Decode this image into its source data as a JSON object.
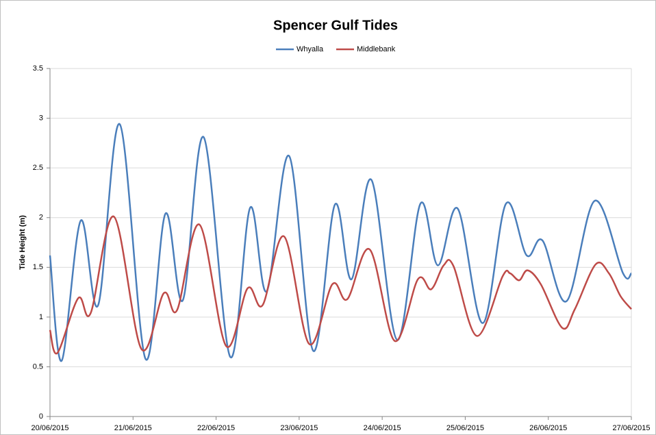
{
  "chart_data": {
    "type": "line",
    "title": "Spencer Gulf Tides",
    "y_label": "Tide Height (m)",
    "xlim": [
      0,
      7
    ],
    "xticks": [
      {
        "value": 0,
        "label": "20/06/2015"
      },
      {
        "value": 1,
        "label": "21/06/2015"
      },
      {
        "value": 2,
        "label": "22/06/2015"
      },
      {
        "value": 3,
        "label": "23/06/2015"
      },
      {
        "value": 4,
        "label": "24/06/2015"
      },
      {
        "value": 5,
        "label": "25/06/2015"
      },
      {
        "value": 6,
        "label": "26/06/2015"
      },
      {
        "value": 7,
        "label": "27/06/2015"
      }
    ],
    "ylim": [
      0,
      3.5
    ],
    "yticks": [
      0,
      0.5,
      1,
      1.5,
      2,
      2.5,
      3,
      3.5
    ],
    "grid": true,
    "legend": "top",
    "series": [
      {
        "name": "Whyalla",
        "color": "#4a7ebb",
        "x": [
          0,
          0.14,
          0.37,
          0.58,
          0.84,
          1.15,
          1.39,
          1.6,
          1.85,
          2.17,
          2.41,
          2.61,
          2.88,
          3.17,
          3.43,
          3.63,
          3.87,
          4.18,
          4.46,
          4.67,
          4.91,
          5.21,
          5.49,
          5.74,
          5.93,
          6.22,
          6.56,
          6.9,
          7
        ],
        "values": [
          1.62,
          0.56,
          1.97,
          1.12,
          2.94,
          0.58,
          2.04,
          1.17,
          2.81,
          0.6,
          2.1,
          1.26,
          2.62,
          0.66,
          2.13,
          1.38,
          2.38,
          0.77,
          2.14,
          1.52,
          2.09,
          0.94,
          2.14,
          1.62,
          1.77,
          1.16,
          2.17,
          1.44,
          1.44
        ]
      },
      {
        "name": "Middlebank",
        "color": "#be4b48",
        "x": [
          0,
          0.09,
          0.34,
          0.49,
          0.77,
          1.1,
          1.37,
          1.53,
          1.8,
          2.12,
          2.38,
          2.56,
          2.82,
          3.12,
          3.4,
          3.58,
          3.85,
          4.15,
          4.43,
          4.59,
          4.74,
          4.86,
          5.14,
          5.45,
          5.54,
          5.65,
          5.75,
          5.91,
          6.17,
          6.32,
          6.57,
          6.73,
          6.87,
          7
        ],
        "values": [
          0.87,
          0.64,
          1.19,
          1.04,
          2.01,
          0.68,
          1.24,
          1.07,
          1.93,
          0.71,
          1.29,
          1.12,
          1.81,
          0.73,
          1.33,
          1.18,
          1.68,
          0.76,
          1.38,
          1.28,
          1.52,
          1.51,
          0.81,
          1.41,
          1.44,
          1.37,
          1.47,
          1.33,
          0.89,
          1.08,
          1.53,
          1.44,
          1.21,
          1.08
        ]
      }
    ]
  }
}
